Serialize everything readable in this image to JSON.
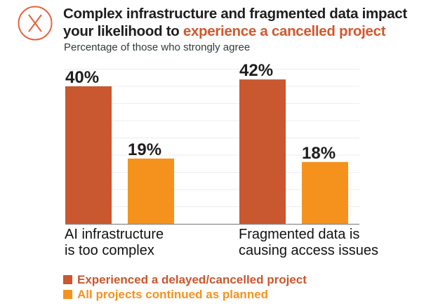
{
  "header": {
    "icon": "x-circle-icon",
    "title_part1": "Complex infrastructure and fragmented data impact",
    "title_part2_plain": "your likelihood to ",
    "title_part2_accent": "experience a cancelled project",
    "subtitle": "Percentage of those who strongly agree"
  },
  "colors": {
    "accent": "#d0582f",
    "series1": "#c9572f",
    "series2": "#f5921e",
    "text": "#1e1e1e"
  },
  "chart_data": {
    "type": "bar",
    "title": "Complex infrastructure and fragmented data impact your likelihood to experience a cancelled project",
    "subtitle": "Percentage of those who strongly agree",
    "categories": [
      "AI infrastructure is too complex",
      "Fragmented data is causing access issues"
    ],
    "category_lines": [
      [
        "AI infrastructure",
        "is too complex"
      ],
      [
        "Fragmented data is",
        "causing access issues"
      ]
    ],
    "series": [
      {
        "name": "Experienced a delayed/cancelled project",
        "values": [
          40,
          42
        ],
        "color": "#c9572f"
      },
      {
        "name": "All projects continued as planned",
        "values": [
          19,
          18
        ],
        "color": "#f5921e"
      }
    ],
    "value_suffix": "%",
    "ylim": [
      0,
      45
    ],
    "grid_step": 5,
    "grid": true,
    "xlabel": "",
    "ylabel": "",
    "legend_position": "bottom-left"
  }
}
